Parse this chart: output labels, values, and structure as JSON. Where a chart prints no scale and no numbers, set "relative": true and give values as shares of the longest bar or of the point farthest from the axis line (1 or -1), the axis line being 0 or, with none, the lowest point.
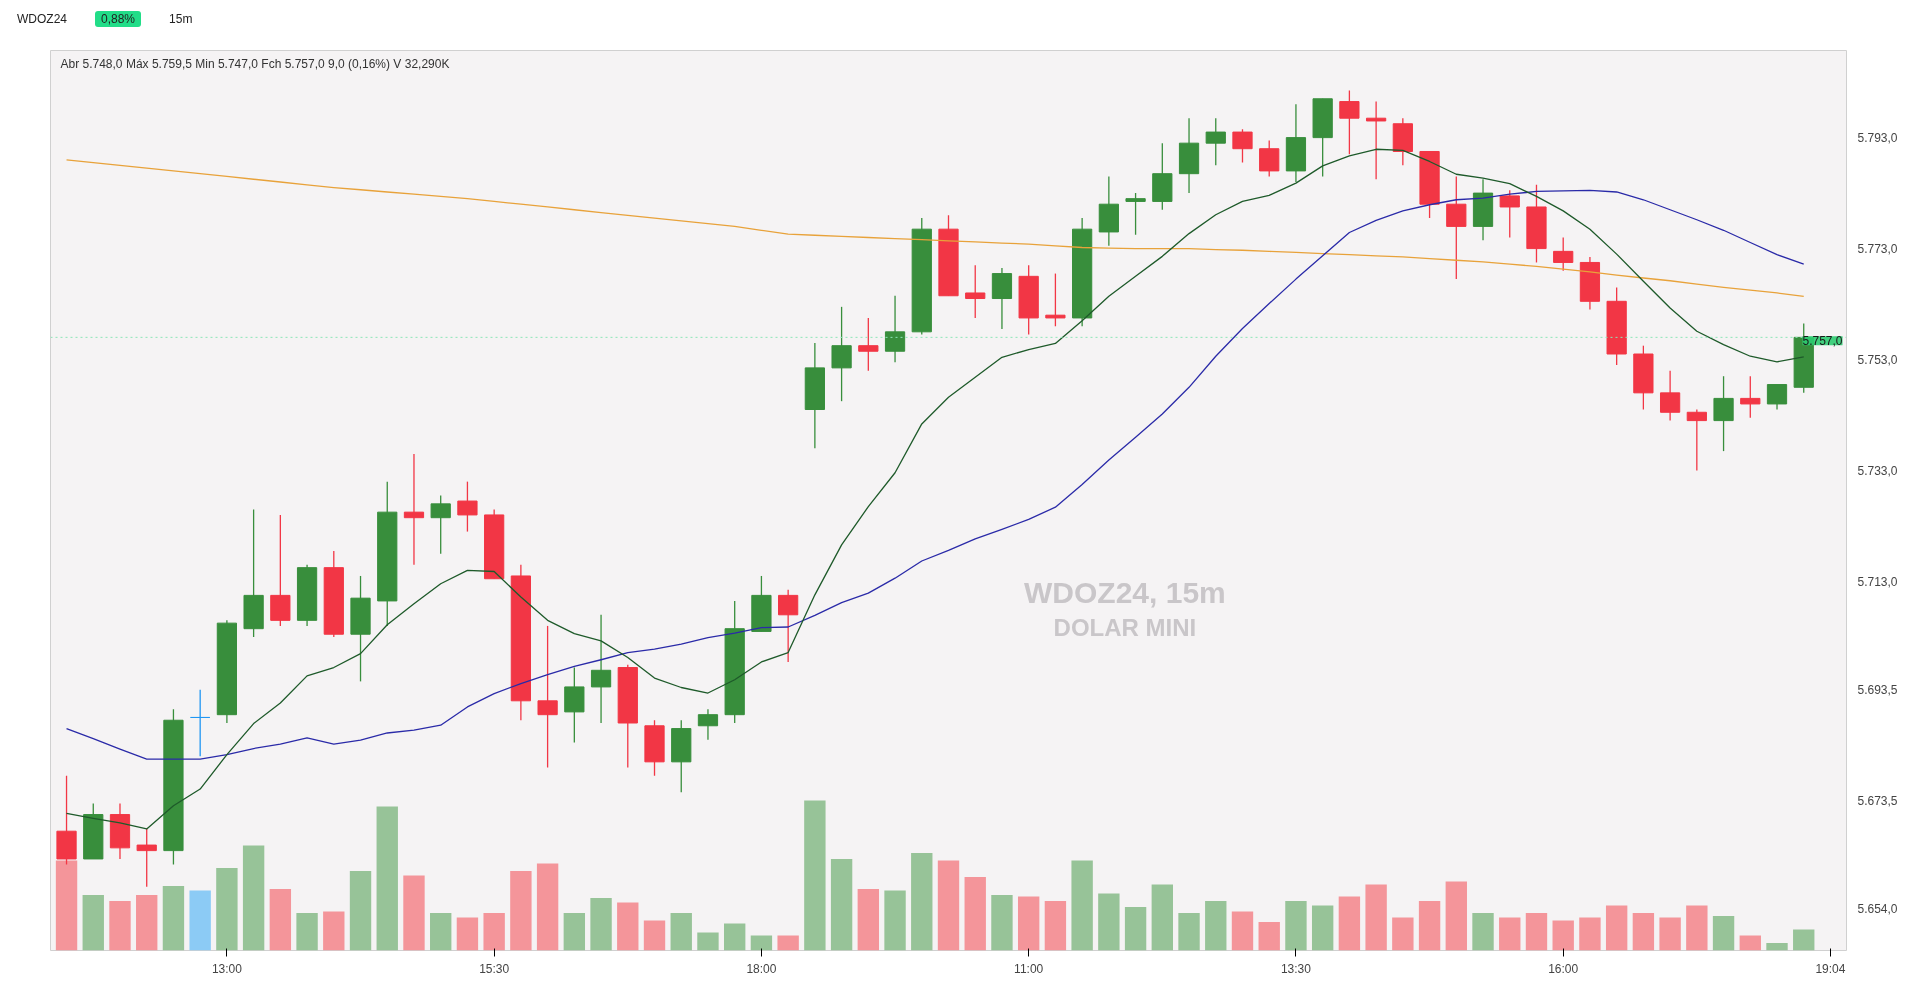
{
  "chart_data": [
    {
      "type": "candlestick",
      "title": "WDOZ24, 15m",
      "subtitle": "DOLAR MINI",
      "categories": [
        null,
        null,
        null,
        null,
        null,
        null,
        "13:00",
        null,
        null,
        null,
        null,
        null,
        null,
        null,
        null,
        null,
        "15:30",
        null,
        null,
        null,
        null,
        null,
        null,
        null,
        null,
        null,
        "18:00",
        null,
        null,
        null,
        null,
        null,
        null,
        null,
        null,
        null,
        "11:00",
        null,
        null,
        null,
        null,
        null,
        null,
        null,
        null,
        null,
        "13:30",
        null,
        null,
        null,
        null,
        null,
        null,
        null,
        null,
        null,
        "16:00",
        null,
        null,
        null,
        null,
        null,
        null,
        null,
        null,
        null,
        "19:04"
      ],
      "ohlc": [
        [
          5668,
          5678,
          5662,
          5663
        ],
        [
          5663,
          5673,
          5663,
          5671
        ],
        [
          5671,
          5673,
          5663,
          5665
        ],
        [
          5665.5,
          5668.5,
          5658,
          5664.5
        ],
        [
          5664.5,
          5690,
          5662,
          5688
        ],
        [
          5688.5,
          5693.5,
          5681.5,
          5688.5
        ],
        [
          5689,
          5706,
          5687.5,
          5705.5
        ],
        [
          5704.5,
          5726,
          5703,
          5710.5
        ],
        [
          5710.5,
          5725,
          5705,
          5706
        ],
        [
          5706,
          5716,
          5705,
          5715.5
        ],
        [
          5715.5,
          5718.5,
          5703,
          5703.5
        ],
        [
          5703.5,
          5714,
          5695,
          5710
        ],
        [
          5709.5,
          5731,
          5705,
          5725.5
        ],
        [
          5725.5,
          5736,
          5716,
          5724.5
        ],
        [
          5724.5,
          5728.5,
          5718,
          5727
        ],
        [
          5727.5,
          5731,
          5722,
          5725
        ],
        [
          5725,
          5726,
          5713.5,
          5713.5
        ],
        [
          5714,
          5716,
          5688,
          5691.5
        ],
        [
          5691.5,
          5705,
          5679.5,
          5689
        ],
        [
          5689.5,
          5697.5,
          5684,
          5694
        ],
        [
          5694,
          5707,
          5687.5,
          5697
        ],
        [
          5697.5,
          5698,
          5679.5,
          5687.5
        ],
        [
          5687,
          5688,
          5678,
          5680.5
        ],
        [
          5680.5,
          5688,
          5675,
          5686.5
        ],
        [
          5687,
          5690,
          5684.5,
          5689
        ],
        [
          5689,
          5709.5,
          5687.5,
          5704.5
        ],
        [
          5704,
          5714,
          5704,
          5710.5
        ],
        [
          5710.5,
          5711.5,
          5698.5,
          5707
        ],
        [
          5744,
          5756,
          5737,
          5751.5
        ],
        [
          5751.5,
          5762.5,
          5745.5,
          5755.5
        ],
        [
          5755.5,
          5760.5,
          5751,
          5754.5
        ],
        [
          5754.5,
          5764.5,
          5752.5,
          5758
        ],
        [
          5758,
          5778.5,
          5757.5,
          5776.5
        ],
        [
          5776.5,
          5779,
          5764.5,
          5764.5
        ],
        [
          5765,
          5770,
          5760.5,
          5764
        ],
        [
          5764,
          5769.5,
          5758.5,
          5768.5
        ],
        [
          5768,
          5770,
          5757.5,
          5760.5
        ],
        [
          5761,
          5768.5,
          5759,
          5760.5
        ],
        [
          5760.5,
          5778.5,
          5759,
          5776.5
        ],
        [
          5776,
          5786,
          5773.5,
          5781
        ],
        [
          5781.5,
          5783,
          5775.5,
          5782
        ],
        [
          5781.5,
          5792,
          5780,
          5786.5
        ],
        [
          5786.5,
          5796.5,
          5783,
          5792
        ],
        [
          5792,
          5796.5,
          5788,
          5794
        ],
        [
          5794,
          5794.5,
          5788.5,
          5791
        ],
        [
          5791,
          5792.5,
          5786,
          5787
        ],
        [
          5787,
          5799,
          5785,
          5793
        ],
        [
          5793,
          5800,
          5786,
          5800
        ],
        [
          5799.5,
          5801.5,
          5790,
          5796.5
        ],
        [
          5796.5,
          5799.5,
          5785.5,
          5796
        ],
        [
          5795.5,
          5796.5,
          5788,
          5790.5
        ],
        [
          5790.5,
          5790.5,
          5778.5,
          5781
        ],
        [
          5781,
          5786,
          5767.5,
          5777
        ],
        [
          5777,
          5785.5,
          5774.5,
          5783
        ],
        [
          5782.5,
          5783.5,
          5775,
          5780.5
        ],
        [
          5780.5,
          5784.5,
          5770.5,
          5773
        ],
        [
          5772.5,
          5775,
          5769,
          5770.5
        ],
        [
          5770.5,
          5771.5,
          5762,
          5763.5
        ],
        [
          5763.5,
          5766,
          5752,
          5754
        ],
        [
          5754,
          5755.5,
          5744,
          5747
        ],
        [
          5747,
          5751,
          5742,
          5743.5
        ],
        [
          5743.5,
          5744,
          5733,
          5742
        ],
        [
          5742,
          5750,
          5736.5,
          5746
        ],
        [
          5746,
          5750,
          5742.5,
          5745
        ],
        [
          5745,
          5748.5,
          5744,
          5748.5
        ],
        [
          5748,
          5759.5,
          5747,
          5757
        ],
        null
      ],
      "colors": [
        "#f23645",
        "#388e3c",
        "#f23645",
        "#f23645",
        "#388e3c",
        "#2196f3",
        "#388e3c",
        "#388e3c",
        "#f23645",
        "#388e3c",
        "#f23645",
        "#388e3c",
        "#388e3c",
        "#f23645",
        "#388e3c",
        "#f23645",
        "#f23645",
        "#f23645",
        "#f23645",
        "#388e3c",
        "#388e3c",
        "#f23645",
        "#f23645",
        "#388e3c",
        "#388e3c",
        "#388e3c",
        "#388e3c",
        "#f23645",
        "#388e3c",
        "#388e3c",
        "#f23645",
        "#388e3c",
        "#388e3c",
        "#f23645",
        "#f23645",
        "#388e3c",
        "#f23645",
        "#f23645",
        "#388e3c",
        "#388e3c",
        "#388e3c",
        "#388e3c",
        "#388e3c",
        "#388e3c",
        "#f23645",
        "#f23645",
        "#388e3c",
        "#388e3c",
        "#f23645",
        "#f23645",
        "#f23645",
        "#f23645",
        "#f23645",
        "#388e3c",
        "#f23645",
        "#f23645",
        "#f23645",
        "#f23645",
        "#f23645",
        "#f23645",
        "#f23645",
        "#f23645",
        "#388e3c",
        "#f23645",
        "#388e3c",
        "#388e3c",
        null
      ],
      "series": [
        {
          "type": "line",
          "color": "#e8a23a",
          "values": [
            5789.0,
            5788.5,
            5788.0,
            5787.5,
            5787.0,
            5786.5,
            5786.0,
            5785.5,
            5785.0,
            5784.5,
            5784.0,
            5783.6,
            5783.2,
            5782.8,
            5782.4,
            5782.0,
            5781.5,
            5781.0,
            5780.5,
            5780.0,
            5779.5,
            5779.0,
            5778.5,
            5778.0,
            5777.5,
            5777.0,
            5776.3,
            5775.6,
            5775.4,
            5775.2,
            5775.0,
            5774.8,
            5774.6,
            5774.4,
            5774.2,
            5774.0,
            5773.8,
            5773.5,
            5773.2,
            5773.1,
            5773.0,
            5773.0,
            5773.0,
            5772.8,
            5772.7,
            5772.5,
            5772.3,
            5772.1,
            5771.9,
            5771.7,
            5771.5,
            5771.2,
            5770.9,
            5770.6,
            5770.2,
            5769.8,
            5769.3,
            5768.8,
            5768.2,
            5767.7,
            5767.2,
            5766.6,
            5766.0,
            5765.5,
            5765.0,
            5764.4,
            null
          ]
        },
        {
          "type": "line",
          "color": "#2a2aa8",
          "values": [
            5686.5,
            5684.7,
            5682.8,
            5681.0,
            5681.0,
            5681.0,
            5681.8,
            5682.9,
            5683.7,
            5684.8,
            5683.7,
            5684.4,
            5685.7,
            5686.2,
            5687.1,
            5690.4,
            5692.8,
            5694.6,
            5696.2,
            5697.7,
            5698.9,
            5700.2,
            5700.8,
            5701.7,
            5702.9,
            5703.7,
            5704.7,
            5704.8,
            5706.9,
            5709.2,
            5710.9,
            5713.6,
            5716.7,
            5718.6,
            5720.7,
            5722.4,
            5724.2,
            5726.4,
            5730.5,
            5734.9,
            5739.0,
            5743.2,
            5748.0,
            5753.6,
            5758.6,
            5763.1,
            5767.5,
            5771.7,
            5775.9,
            5778.1,
            5779.8,
            5780.9,
            5781.8,
            5782.1,
            5782.8,
            5783.3,
            5783.4,
            5783.5,
            5783.2,
            5781.8,
            5780.0,
            5778.2,
            5776.3,
            5774.1,
            5771.9,
            5770.2,
            null
          ]
        },
        {
          "type": "line",
          "color": "#1e5a2a",
          "values": [
            5671.2,
            5670.3,
            5669.5,
            5668.4,
            5672.6,
            5675.6,
            5681.8,
            5687.4,
            5691.1,
            5696.0,
            5697.5,
            5700.0,
            5705.2,
            5709.0,
            5712.6,
            5715.0,
            5714.8,
            5710.2,
            5706.0,
            5703.6,
            5702.3,
            5699.3,
            5695.6,
            5693.9,
            5692.9,
            5695.3,
            5698.5,
            5700.2,
            5710.6,
            5719.6,
            5726.5,
            5732.6,
            5741.4,
            5746.2,
            5749.8,
            5753.4,
            5754.8,
            5755.9,
            5760.0,
            5764.4,
            5768.0,
            5771.6,
            5775.7,
            5779.1,
            5781.5,
            5782.6,
            5784.8,
            5787.9,
            5789.7,
            5790.9,
            5790.7,
            5788.7,
            5786.4,
            5785.7,
            5784.7,
            5782.4,
            5779.8,
            5776.5,
            5772.0,
            5767.1,
            5762.3,
            5758.1,
            5755.7,
            5753.6,
            5752.6,
            5753.5,
            null
          ]
        }
      ],
      "ylim": [
        5646.5,
        5808.7
      ],
      "yticks": [
        {
          "value": 5654,
          "label": "5.654,0"
        },
        {
          "value": 5673.5,
          "label": "5.673,5"
        },
        {
          "value": 5693.5,
          "label": "5.693,5"
        },
        {
          "value": 5713,
          "label": "5.713,0"
        },
        {
          "value": 5733,
          "label": "5.733,0"
        },
        {
          "value": 5753,
          "label": "5.753,0"
        },
        {
          "value": 5773,
          "label": "5.773,0"
        },
        {
          "value": 5793,
          "label": "5.793,0"
        }
      ],
      "ref_lines": [
        {
          "axis": "y",
          "value": 5757,
          "label": "5.757,0",
          "color": "#8ee6b8",
          "line_style": "dotted"
        }
      ],
      "annotations": [
        "WDOZ24",
        "0,88%",
        "15m",
        "Abr 5.748,0 Máx 5.759,5 Min 5.747,0 Fch 5.757,0 9,0 (0,16%) V 32,290K"
      ]
    },
    {
      "type": "bar",
      "relative": true,
      "values": [
        0.6,
        0.37,
        0.33,
        0.37,
        0.43,
        0.4,
        0.55,
        0.7,
        0.41,
        0.25,
        0.26,
        0.53,
        0.96,
        0.5,
        0.25,
        0.22,
        0.25,
        0.53,
        0.58,
        0.25,
        0.35,
        0.32,
        0.2,
        0.25,
        0.12,
        0.18,
        0.1,
        0.1,
        1,
        0.61,
        0.41,
        0.4,
        0.65,
        0.6,
        0.49,
        0.37,
        0.36,
        0.33,
        0.6,
        0.38,
        0.29,
        0.44,
        0.25,
        0.33,
        0.26,
        0.19,
        0.33,
        0.3,
        0.36,
        0.44,
        0.22,
        0.33,
        0.46,
        0.25,
        0.22,
        0.25,
        0.2,
        0.22,
        0.3,
        0.25,
        0.22,
        0.3,
        0.23,
        0.1,
        0.05,
        0.14,
        null
      ],
      "colors": [
        "#f4959a",
        "#97c398",
        "#f4959a",
        "#f4959a",
        "#97c398",
        "#8ccbf5",
        "#97c398",
        "#97c398",
        "#f4959a",
        "#97c398",
        "#f4959a",
        "#97c398",
        "#97c398",
        "#f4959a",
        "#97c398",
        "#f4959a",
        "#f4959a",
        "#f4959a",
        "#f4959a",
        "#97c398",
        "#97c398",
        "#f4959a",
        "#f4959a",
        "#97c398",
        "#97c398",
        "#97c398",
        "#97c398",
        "#f4959a",
        "#97c398",
        "#97c398",
        "#f4959a",
        "#97c398",
        "#97c398",
        "#f4959a",
        "#f4959a",
        "#97c398",
        "#f4959a",
        "#f4959a",
        "#97c398",
        "#97c398",
        "#97c398",
        "#97c398",
        "#97c398",
        "#97c398",
        "#f4959a",
        "#f4959a",
        "#97c398",
        "#97c398",
        "#f4959a",
        "#f4959a",
        "#f4959a",
        "#f4959a",
        "#f4959a",
        "#97c398",
        "#f4959a",
        "#f4959a",
        "#f4959a",
        "#f4959a",
        "#f4959a",
        "#f4959a",
        "#f4959a",
        "#f4959a",
        "#97c398",
        "#f4959a",
        "#97c398",
        "#97c398",
        null
      ]
    }
  ]
}
